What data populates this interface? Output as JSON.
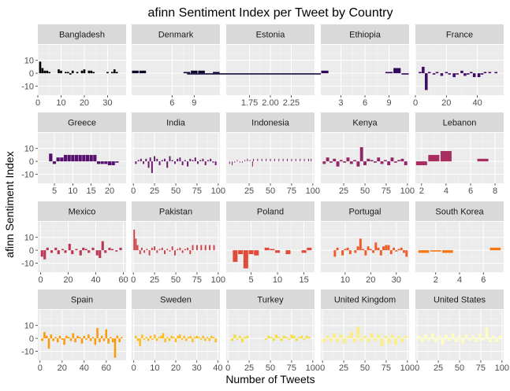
{
  "chart_data": {
    "type": "bar",
    "title": "afinn Sentiment Index per Tweet by Country",
    "xlabel": "Number of Tweets",
    "ylabel": "afinn Sentiment Index",
    "ylim": [
      -17,
      22
    ],
    "y_ticks": [
      -10,
      0,
      10
    ],
    "grid": true,
    "facets": [
      {
        "name": "Bangladesh",
        "color": "#000004",
        "xlim": [
          0,
          38
        ],
        "x_ticks": [
          0,
          10,
          20,
          30
        ],
        "x": [
          1,
          2,
          3,
          4,
          5,
          6,
          7,
          8,
          9,
          10,
          11,
          12,
          13,
          14,
          15,
          16,
          17,
          18,
          19,
          20,
          21,
          22,
          23,
          24,
          25,
          26,
          27,
          28,
          29,
          30,
          31,
          32,
          33,
          34,
          35,
          36
        ],
        "values": [
          9,
          4,
          2,
          2,
          1,
          0,
          0,
          0,
          3,
          2,
          0,
          1,
          1,
          -1,
          2,
          0,
          1,
          0,
          2,
          3,
          0,
          2,
          2,
          1,
          0,
          0,
          0,
          0,
          0,
          1,
          0,
          1,
          3,
          1,
          0,
          0
        ]
      },
      {
        "name": "Denmark",
        "color": "#0d0829",
        "xlim": [
          0.5,
          12.5
        ],
        "x_ticks": [
          6,
          9
        ],
        "x_tick_labels": [
          "6",
          "9"
        ],
        "x_ticks_extra": [
          12
        ],
        "x": [
          1,
          2,
          3,
          4,
          5,
          6,
          7,
          8,
          9,
          10,
          11,
          12
        ],
        "values": [
          2,
          2,
          0,
          0,
          0,
          0,
          0,
          1,
          2,
          2,
          0,
          1
        ]
      },
      {
        "name": "Estonia",
        "color": "#1b0c41",
        "xlim": [
          1.47,
          2.53
        ],
        "x_ticks": [
          1.75,
          2.0,
          2.25
        ],
        "x_tick_labels": [
          "1.75",
          "2.00",
          "2.25"
        ],
        "x": [
          1.5,
          2.5
        ],
        "values": [
          -1,
          -1
        ],
        "bar_width": 1.0
      },
      {
        "name": "Ethiopia",
        "color": "#2f0a5b",
        "xlim": [
          0.5,
          11.5
        ],
        "x_ticks": [
          3,
          6,
          9
        ],
        "x": [
          1,
          2,
          3,
          4,
          5,
          6,
          7,
          8,
          9,
          10,
          11
        ],
        "values": [
          2,
          0,
          0,
          0,
          0,
          0,
          0,
          0,
          1,
          4,
          -1
        ]
      },
      {
        "name": "France",
        "color": "#420a68",
        "xlim": [
          0,
          57
        ],
        "x_ticks": [
          0,
          20,
          40
        ],
        "x": [
          3,
          5,
          7,
          9,
          12,
          14,
          17,
          20,
          22,
          25,
          27,
          30,
          32,
          34,
          36,
          38,
          41,
          43,
          45,
          48,
          52
        ],
        "values": [
          1,
          5,
          -13,
          1,
          -1,
          1,
          -2,
          1,
          -1,
          -3,
          -1,
          2,
          -2,
          -1,
          1,
          -3,
          -3,
          -1,
          1,
          1,
          1
        ]
      },
      {
        "name": "Greece",
        "color": "#57106e",
        "xlim": [
          0.5,
          24.5
        ],
        "x_ticks": [
          5,
          10,
          15,
          20
        ],
        "x": [
          2,
          3,
          4,
          5,
          6,
          7,
          8,
          9,
          10,
          11,
          12,
          13,
          14,
          15,
          16,
          17,
          18,
          19,
          20,
          21,
          22
        ],
        "values": [
          0,
          0,
          6,
          -2,
          3,
          3,
          5,
          5,
          5,
          5,
          5,
          5,
          5,
          5,
          5,
          -2,
          -2,
          -2,
          -3,
          -3,
          -1
        ]
      },
      {
        "name": "India",
        "color": "#6a176e",
        "xlim": [
          -2,
          102
        ],
        "x_ticks": [
          0,
          25,
          50,
          75,
          100
        ],
        "x": [
          3,
          6,
          9,
          12,
          15,
          18,
          20,
          22,
          25,
          28,
          31,
          34,
          37,
          40,
          43,
          46,
          49,
          52,
          55,
          58,
          61,
          64,
          67,
          70,
          73,
          76,
          79,
          82,
          85,
          88,
          91,
          94,
          97
        ],
        "values": [
          -2,
          1,
          2,
          -2,
          2,
          -5,
          3,
          -9,
          4,
          2,
          -3,
          1,
          2,
          -5,
          4,
          1,
          -2,
          2,
          3,
          -3,
          1,
          -4,
          2,
          1,
          3,
          -2,
          1,
          2,
          -3,
          1,
          2,
          -1,
          -3
        ]
      },
      {
        "name": "Indonesia",
        "color": "#7f1e6c",
        "xlim": [
          -2,
          102
        ],
        "x_ticks": [
          25,
          50,
          75,
          100
        ],
        "x": [
          2,
          5,
          8,
          11,
          14,
          17,
          20,
          23,
          26,
          29,
          30,
          35,
          40,
          45,
          50,
          55,
          60,
          65,
          70,
          75,
          80,
          85,
          90,
          95,
          98
        ],
        "values": [
          -2,
          -3,
          -1,
          1,
          -1,
          -1,
          1,
          2,
          1,
          -4,
          2,
          2,
          2,
          2,
          2,
          2,
          2,
          2,
          2,
          2,
          2,
          2,
          2,
          2,
          2
        ]
      },
      {
        "name": "Kenya",
        "color": "#932667",
        "xlim": [
          -2,
          102
        ],
        "x_ticks": [
          25,
          50,
          75,
          100
        ],
        "x": [
          2,
          6,
          10,
          14,
          18,
          22,
          26,
          30,
          34,
          38,
          42,
          46,
          50,
          54,
          58,
          62,
          66,
          70,
          74,
          78,
          82,
          86,
          90,
          94,
          98
        ],
        "values": [
          -2,
          3,
          -1,
          2,
          -4,
          1,
          -1,
          3,
          -2,
          1,
          -4,
          11,
          -3,
          2,
          1,
          -1,
          3,
          -2,
          1,
          -3,
          3,
          -1,
          1,
          2,
          -3
        ]
      },
      {
        "name": "Lebanon",
        "color": "#a82e5f",
        "xlim": [
          1.5,
          8.7
        ],
        "x_ticks": [
          2,
          4,
          6,
          8
        ],
        "x": [
          2,
          3,
          4,
          5,
          6,
          7
        ],
        "values": [
          -3,
          5,
          8,
          0,
          0,
          2
        ]
      },
      {
        "name": "Mexico",
        "color": "#bc3754",
        "xlim": [
          -2,
          62
        ],
        "x_ticks": [
          0,
          20,
          40,
          60
        ],
        "x": [
          1,
          3,
          5,
          8,
          11,
          13,
          16,
          18,
          21,
          23,
          26,
          29,
          31,
          33,
          35,
          38,
          41,
          43,
          45,
          47,
          50,
          52,
          55,
          58
        ],
        "values": [
          -5,
          -7,
          2,
          -2,
          2,
          -3,
          1,
          -2,
          5,
          -3,
          1,
          -4,
          2,
          1,
          -2,
          2,
          -4,
          -6,
          7,
          -2,
          2,
          1,
          -1,
          2
        ]
      },
      {
        "name": "Pakistan",
        "color": "#d0414a",
        "xlim": [
          -2,
          102
        ],
        "x_ticks": [
          0,
          25,
          50,
          75,
          100
        ],
        "x": [
          1,
          3,
          5,
          8,
          10,
          13,
          16,
          19,
          22,
          25,
          28,
          31,
          34,
          37,
          40,
          43,
          46,
          49,
          52,
          55,
          58,
          61,
          64,
          67,
          70,
          75,
          80,
          85,
          90,
          95
        ],
        "values": [
          16,
          9,
          4,
          -3,
          2,
          -2,
          1,
          -4,
          2,
          3,
          -2,
          1,
          2,
          -3,
          1,
          -1,
          3,
          -4,
          1,
          2,
          -2,
          1,
          2,
          -3,
          4,
          4,
          4,
          4,
          4,
          4
        ]
      },
      {
        "name": "Poland",
        "color": "#e04b39",
        "xlim": [
          0.3,
          17
        ],
        "x_ticks": [
          0,
          5,
          10,
          15
        ],
        "x": [
          2,
          3,
          4,
          5,
          6,
          7,
          8,
          9,
          10,
          11,
          12,
          13,
          14,
          15,
          16
        ],
        "values": [
          -9,
          -3,
          -14,
          -3,
          -4,
          0,
          2,
          1,
          -2,
          0,
          -3,
          0,
          0,
          -2,
          2
        ]
      },
      {
        "name": "Portugal",
        "color": "#ef5a2a",
        "xlim": [
          0.5,
          35
        ],
        "x_ticks": [
          10,
          20,
          30
        ],
        "x": [
          6,
          7,
          9,
          10,
          11,
          12,
          14,
          15,
          16,
          17,
          18,
          19,
          20,
          21,
          22,
          23,
          24,
          25,
          26,
          27,
          28,
          29,
          30,
          31,
          32,
          33,
          34
        ],
        "values": [
          -5,
          2,
          -4,
          1,
          2,
          -3,
          -2,
          3,
          9,
          1,
          -4,
          3,
          1,
          -2,
          6,
          2,
          -4,
          3,
          4,
          4,
          -3,
          2,
          -1,
          1,
          2,
          -2,
          -5
        ]
      },
      {
        "name": "South Korea",
        "color": "#f8750f",
        "xlim": [
          0.3,
          7.7
        ],
        "x_ticks": [
          2,
          4,
          6
        ],
        "x": [
          1,
          2,
          3,
          4,
          5,
          6,
          7
        ],
        "values": [
          -2,
          -1,
          -2,
          0,
          0,
          0,
          2
        ]
      },
      {
        "name": "Spain",
        "color": "#fb9a06",
        "xlim": [
          -2,
          78
        ],
        "x_ticks": [
          0,
          20,
          40,
          60
        ],
        "x": [
          2,
          4,
          6,
          8,
          10,
          12,
          14,
          16,
          18,
          20,
          22,
          24,
          26,
          28,
          30,
          32,
          34,
          36,
          38,
          40,
          42,
          44,
          46,
          48,
          50,
          52,
          54,
          56,
          58,
          60,
          62,
          64,
          66,
          68,
          70,
          72,
          74
        ],
        "values": [
          -2,
          5,
          2,
          -8,
          3,
          -2,
          1,
          -3,
          2,
          -1,
          -5,
          2,
          1,
          -2,
          4,
          -3,
          2,
          1,
          -4,
          2,
          -1,
          3,
          -2,
          1,
          -5,
          8,
          -3,
          2,
          -2,
          7,
          -4,
          1,
          -3,
          -15,
          2,
          -3,
          1
        ]
      },
      {
        "name": "Sweden",
        "color": "#fcbc14",
        "xlim": [
          -1,
          41
        ],
        "x_ticks": [
          0,
          10,
          20,
          30,
          40
        ],
        "x": [
          1,
          2,
          3,
          4,
          5,
          6,
          7,
          8,
          9,
          10,
          11,
          12,
          13,
          14,
          15,
          16,
          17,
          18,
          19,
          20,
          21,
          22,
          23,
          24,
          25,
          26,
          27,
          28,
          29,
          30,
          31,
          32,
          33,
          34,
          35,
          36,
          37,
          38,
          39
        ],
        "values": [
          2,
          -2,
          -6,
          3,
          -1,
          1,
          -2,
          2,
          -1,
          3,
          -2,
          1,
          2,
          4,
          -3,
          1,
          -2,
          2,
          1,
          -3,
          2,
          3,
          -1,
          2,
          -2,
          1,
          2,
          -3,
          1,
          2,
          1,
          -1,
          2,
          -2,
          1,
          -2,
          2,
          1,
          -3
        ]
      },
      {
        "name": "Turkey",
        "color": "#f3de3a",
        "xlim": [
          -2,
          102
        ],
        "x_ticks": [
          0,
          25,
          50,
          75,
          100
        ],
        "x": [
          5,
          8,
          11,
          14,
          17,
          20,
          23,
          45,
          48,
          51,
          54,
          57,
          60,
          63,
          66,
          69,
          72,
          75,
          78,
          81,
          84,
          87,
          90,
          93,
          96
        ],
        "values": [
          -2,
          3,
          -1,
          2,
          -3,
          1,
          2,
          -1,
          2,
          1,
          -2,
          3,
          1,
          -2,
          2,
          1,
          -1,
          3,
          2,
          -2,
          1,
          2,
          -1,
          2,
          1
        ]
      },
      {
        "name": "United Kingdom",
        "color": "#f9ee8a",
        "xlim": [
          -2,
          102
        ],
        "x_ticks": [
          0,
          25,
          50,
          75,
          100
        ],
        "x": [
          2,
          6,
          10,
          14,
          18,
          22,
          26,
          30,
          34,
          38,
          42,
          46,
          50,
          54,
          58,
          62,
          66,
          70,
          74,
          78,
          82,
          86,
          90,
          94,
          98
        ],
        "values": [
          -3,
          2,
          -2,
          4,
          -3,
          3,
          -4,
          2,
          5,
          -3,
          9,
          -2,
          2,
          -3,
          4,
          -2,
          3,
          -6,
          2,
          -4,
          3,
          -5,
          2,
          -3,
          2
        ]
      },
      {
        "name": "United States",
        "color": "#fcfdbf",
        "xlim": [
          -2,
          102
        ],
        "x_ticks": [
          0,
          25,
          50,
          75,
          100
        ],
        "x": [
          2,
          6,
          10,
          14,
          18,
          22,
          26,
          30,
          34,
          38,
          42,
          46,
          50,
          54,
          58,
          62,
          66,
          70,
          74,
          78,
          82,
          86,
          90,
          94,
          98
        ],
        "values": [
          2,
          -3,
          3,
          -2,
          4,
          -3,
          2,
          -5,
          3,
          -2,
          4,
          -3,
          2,
          -4,
          3,
          -2,
          2,
          -3,
          4,
          -2,
          9,
          -3,
          2,
          -3,
          2
        ]
      }
    ]
  }
}
